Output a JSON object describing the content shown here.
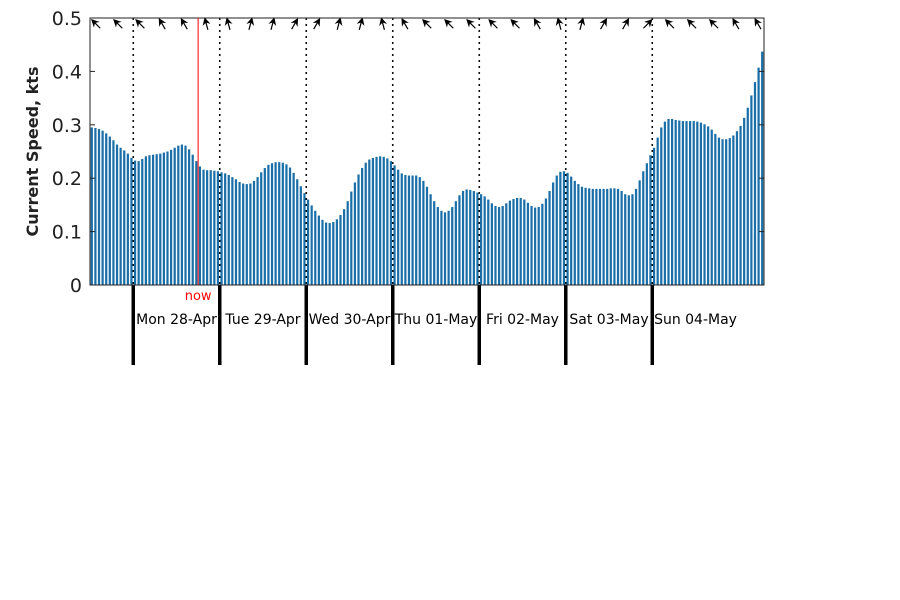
{
  "chart_data": {
    "type": "bar",
    "title": "",
    "xlabel": "",
    "ylabel": "Current Speed, kts",
    "ylim": [
      0,
      0.5
    ],
    "yticks": [
      "0",
      "0.1",
      "0.2",
      "0.3",
      "0.4",
      "0.5"
    ],
    "grid": false,
    "legend": "none",
    "bar_color": "#1a6fa8",
    "now_color": "#ff0000",
    "now_label": "now",
    "now_position_hours": 30,
    "bar_interval_hours": 1,
    "days": [
      {
        "label": "Mon 28-Apr",
        "start_hour": 12
      },
      {
        "label": "Tue 29-Apr",
        "start_hour": 36
      },
      {
        "label": "Wed 30-Apr",
        "start_hour": 60
      },
      {
        "label": "Thu 01-May",
        "start_hour": 84
      },
      {
        "label": "Fri 02-May",
        "start_hour": 108
      },
      {
        "label": "Sat 03-May",
        "start_hour": 132
      },
      {
        "label": "Sun 04-May",
        "start_hour": 156
      }
    ],
    "values": [
      0.295,
      0.294,
      0.292,
      0.289,
      0.284,
      0.278,
      0.271,
      0.263,
      0.257,
      0.252,
      0.246,
      0.238,
      0.233,
      0.232,
      0.236,
      0.241,
      0.243,
      0.244,
      0.245,
      0.246,
      0.248,
      0.25,
      0.253,
      0.257,
      0.261,
      0.263,
      0.261,
      0.254,
      0.244,
      0.232,
      0.222,
      0.216,
      0.215,
      0.215,
      0.214,
      0.213,
      0.211,
      0.209,
      0.206,
      0.202,
      0.198,
      0.193,
      0.19,
      0.189,
      0.19,
      0.195,
      0.202,
      0.211,
      0.219,
      0.225,
      0.228,
      0.23,
      0.23,
      0.229,
      0.226,
      0.22,
      0.21,
      0.198,
      0.185,
      0.172,
      0.16,
      0.149,
      0.139,
      0.13,
      0.122,
      0.117,
      0.116,
      0.118,
      0.123,
      0.131,
      0.142,
      0.157,
      0.175,
      0.192,
      0.207,
      0.219,
      0.229,
      0.235,
      0.238,
      0.24,
      0.241,
      0.24,
      0.237,
      0.232,
      0.224,
      0.216,
      0.209,
      0.206,
      0.205,
      0.205,
      0.205,
      0.202,
      0.195,
      0.184,
      0.17,
      0.157,
      0.146,
      0.139,
      0.136,
      0.139,
      0.146,
      0.157,
      0.168,
      0.176,
      0.179,
      0.178,
      0.176,
      0.173,
      0.17,
      0.166,
      0.16,
      0.153,
      0.148,
      0.146,
      0.148,
      0.153,
      0.158,
      0.161,
      0.163,
      0.163,
      0.16,
      0.154,
      0.148,
      0.145,
      0.146,
      0.152,
      0.162,
      0.176,
      0.192,
      0.205,
      0.212,
      0.213,
      0.21,
      0.203,
      0.195,
      0.189,
      0.184,
      0.182,
      0.181,
      0.18,
      0.18,
      0.18,
      0.18,
      0.18,
      0.181,
      0.181,
      0.18,
      0.176,
      0.17,
      0.168,
      0.17,
      0.18,
      0.196,
      0.213,
      0.228,
      0.243,
      0.257,
      0.276,
      0.295,
      0.306,
      0.311,
      0.311,
      0.309,
      0.308,
      0.307,
      0.307,
      0.307,
      0.307,
      0.306,
      0.304,
      0.301,
      0.297,
      0.291,
      0.283,
      0.276,
      0.273,
      0.273,
      0.275,
      0.28,
      0.288,
      0.298,
      0.313,
      0.332,
      0.355,
      0.38,
      0.407,
      0.437
    ],
    "direction_arrows_deg": [
      315,
      315,
      315,
      330,
      330,
      345,
      345,
      15,
      15,
      30,
      30,
      15,
      15,
      345,
      330,
      315,
      315,
      315,
      315,
      315,
      330,
      345,
      15,
      30,
      30,
      45,
      315,
      315,
      315,
      330,
      330
    ]
  }
}
